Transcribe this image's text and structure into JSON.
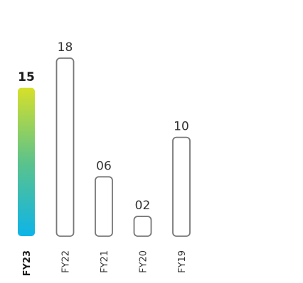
{
  "chart_data": {
    "type": "bar",
    "categories": [
      "FY23",
      "FY22",
      "FY21",
      "FY20",
      "FY19"
    ],
    "values": [
      15,
      18,
      6,
      2,
      10
    ],
    "data_labels": [
      "15",
      "18",
      "06",
      "02",
      "10"
    ],
    "highlight_category": "FY23",
    "title": "",
    "xlabel": "",
    "ylabel": "",
    "ylim": [
      0,
      18
    ],
    "grid": false,
    "legend": "none"
  },
  "colors": {
    "highlight_gradient_top": "#d7e02a",
    "highlight_gradient_mid": "#5cc38a",
    "highlight_gradient_bottom": "#0db4e8",
    "bar_outline": "#777777",
    "bar_fill": "#ffffff",
    "text": "#333333",
    "text_strong": "#1a1a1a"
  }
}
